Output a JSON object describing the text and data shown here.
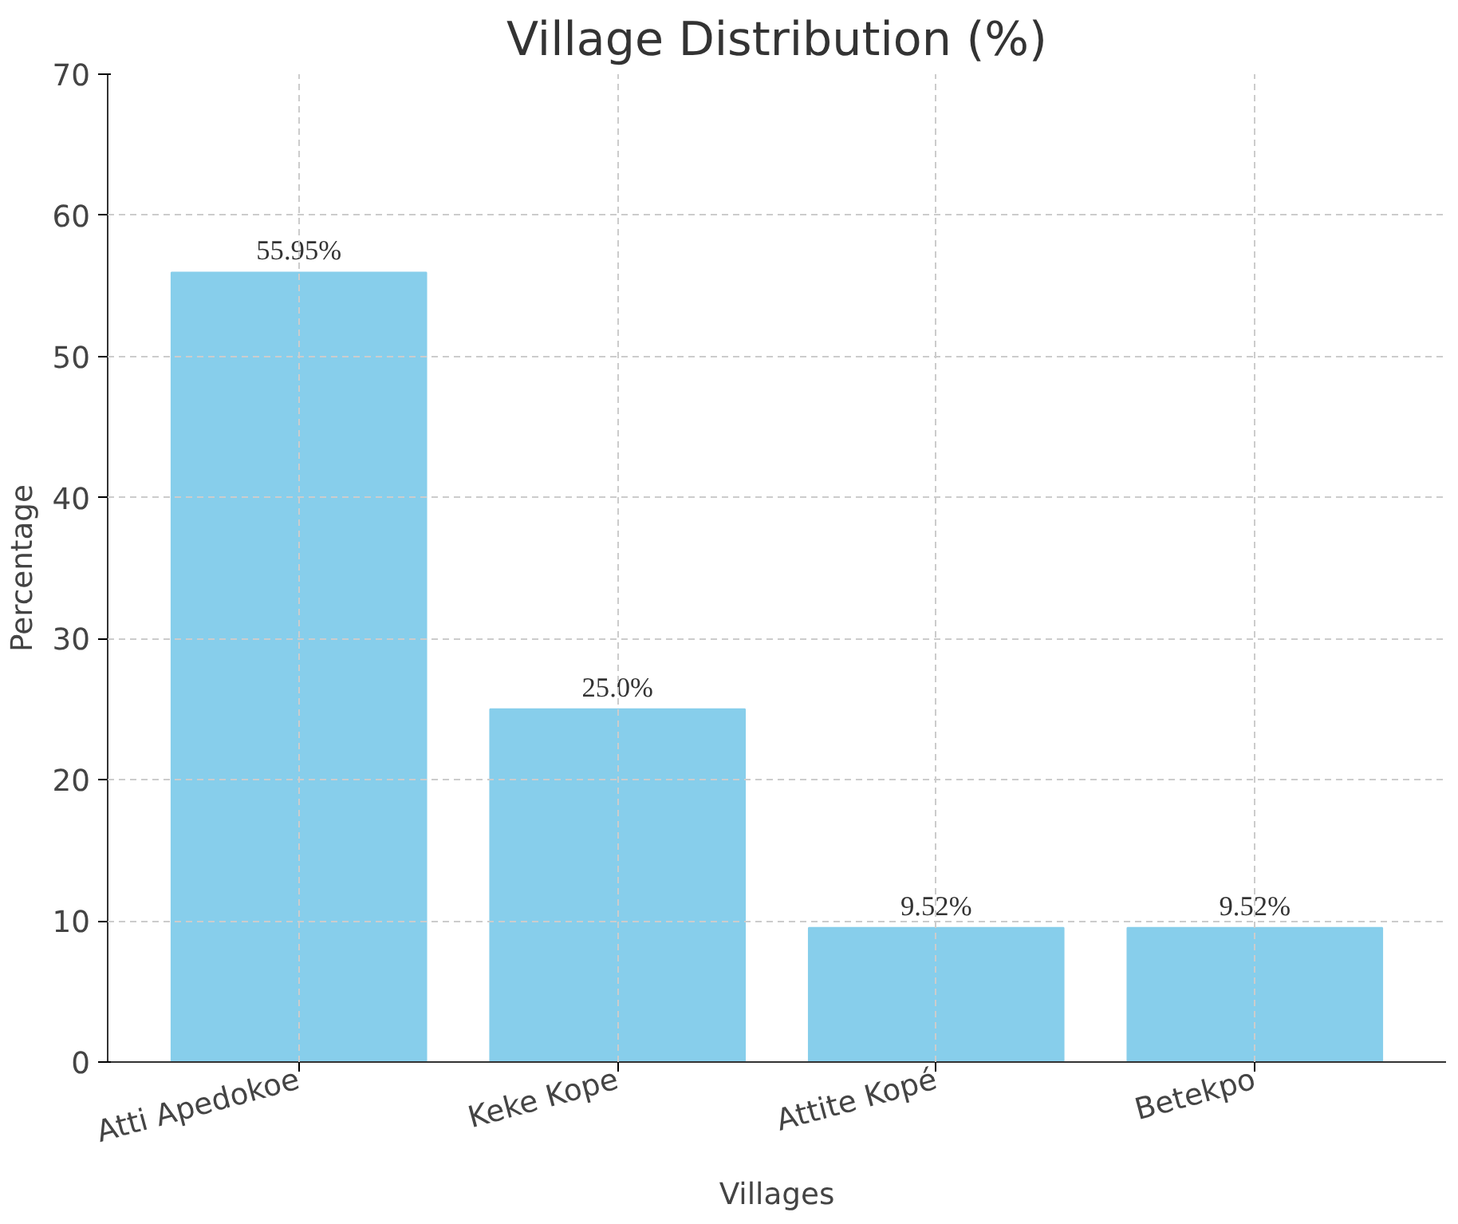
{
  "chart_data": {
    "type": "bar",
    "title": "Village Distribution (%)",
    "xlabel": "Villages",
    "ylabel": "Percentage",
    "categories": [
      "Atti Apedokoe",
      "Keke Kope",
      "Attite Kopé",
      "Betekpo"
    ],
    "values": [
      55.95,
      25.0,
      9.52,
      9.52
    ],
    "value_labels": [
      "55.95%",
      "25.0%",
      "9.52%",
      "9.52%"
    ],
    "color": "#87ceeb",
    "ylim": [
      0,
      70
    ],
    "yticks": [
      0,
      10,
      20,
      30,
      40,
      50,
      60,
      70
    ],
    "grid": true
  }
}
